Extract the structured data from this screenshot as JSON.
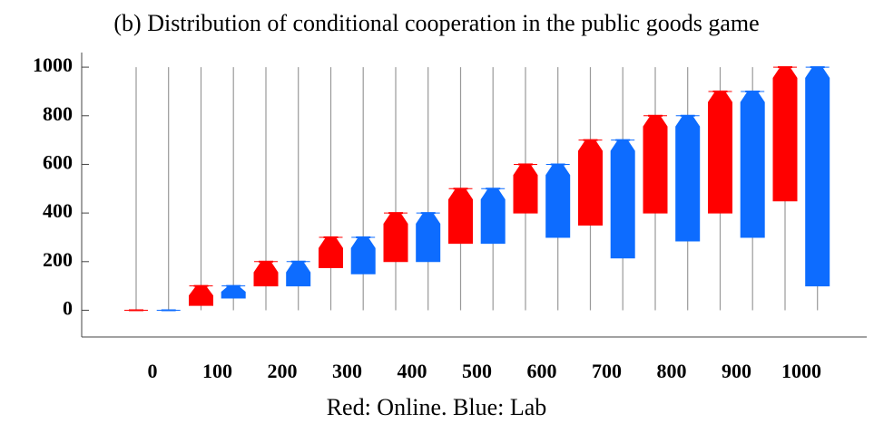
{
  "chart_data": {
    "type": "box",
    "title": "(b) Distribution of conditional cooperation in the public goods game",
    "xlabel": "Red: Online. Blue: Lab",
    "categories": [
      "0",
      "100",
      "200",
      "300",
      "400",
      "500",
      "600",
      "700",
      "800",
      "900",
      "1000"
    ],
    "ylim": [
      -110,
      1060
    ],
    "yticks": [
      0,
      200,
      400,
      600,
      800,
      1000
    ],
    "series": [
      {
        "color": "#ff0000",
        "whislo": [
          0,
          0,
          0,
          0,
          0,
          0,
          0,
          0,
          0,
          0,
          0
        ],
        "q1": [
          0,
          20,
          100,
          175,
          200,
          275,
          400,
          350,
          400,
          400,
          450
        ],
        "med": [
          0,
          100,
          200,
          300,
          400,
          500,
          600,
          700,
          800,
          900,
          1000
        ],
        "q3": [
          0,
          100,
          200,
          300,
          400,
          500,
          600,
          700,
          800,
          900,
          1000
        ],
        "whishi": [
          1000,
          1000,
          1000,
          1000,
          1000,
          1000,
          1000,
          1000,
          1000,
          1000,
          1000
        ]
      },
      {
        "color": "#0d6cff",
        "whislo": [
          0,
          0,
          0,
          0,
          0,
          0,
          0,
          0,
          0,
          0,
          0
        ],
        "q1": [
          0,
          50,
          100,
          150,
          200,
          275,
          300,
          215,
          285,
          300,
          100
        ],
        "med": [
          0,
          100,
          200,
          300,
          400,
          500,
          600,
          700,
          800,
          900,
          1000
        ],
        "q3": [
          0,
          100,
          200,
          300,
          400,
          500,
          600,
          700,
          800,
          900,
          1000
        ],
        "whishi": [
          1000,
          1000,
          1000,
          1000,
          1000,
          1000,
          1000,
          1000,
          1000,
          1000,
          1000
        ]
      }
    ]
  }
}
